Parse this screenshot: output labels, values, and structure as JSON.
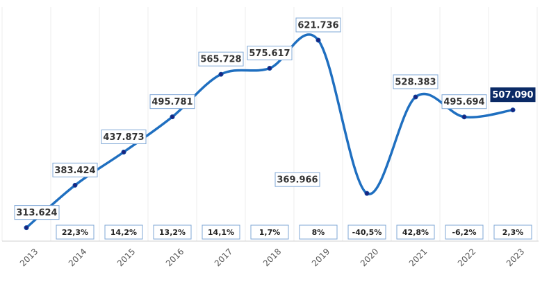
{
  "chart_data": {
    "type": "line",
    "categories": [
      "2013",
      "2014",
      "2015",
      "2016",
      "2017",
      "2018",
      "2019",
      "2020",
      "2021",
      "2022",
      "2023"
    ],
    "values": [
      313624,
      383424,
      437873,
      495781,
      565728,
      575617,
      621736,
      369966,
      528383,
      495694,
      507090
    ],
    "value_labels": [
      "313.624",
      "383.424",
      "437.873",
      "495.781",
      "565.728",
      "575.617",
      "621.736",
      "369.966",
      "528.383",
      "495.694",
      "507.090"
    ],
    "color": "#1f6fc0",
    "ylim": [
      295000,
      665000
    ],
    "changes": {
      "values": [
        null,
        22.3,
        14.2,
        13.2,
        14.1,
        1.7,
        8,
        -40.5,
        42.8,
        -6.2,
        2.3
      ],
      "value_labels": [
        null,
        "22,3%",
        "14,2%",
        "13,2%",
        "14,1%",
        "1,7%",
        "8%",
        "-40,5%",
        "42,8%",
        "-6,2%",
        "2,3%"
      ]
    }
  }
}
